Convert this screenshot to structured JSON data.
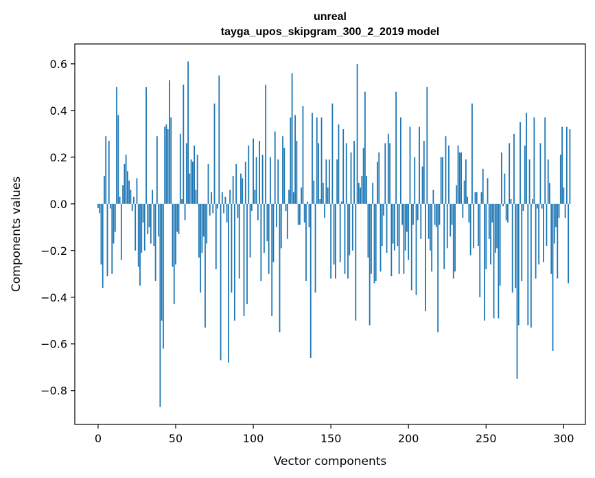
{
  "chart_data": {
    "type": "bar",
    "title": "unreal",
    "subtitle": "tayga_upos_skipgram_300_2_2019 model",
    "xlabel": "Vector components",
    "ylabel": "Components values",
    "xlim": [
      -15,
      314
    ],
    "ylim": [
      -0.945,
      0.685
    ],
    "xticks": [
      0,
      50,
      100,
      150,
      200,
      250,
      300
    ],
    "yticks": [
      -0.8,
      -0.6,
      -0.4,
      -0.2,
      0.0,
      0.2,
      0.4,
      0.6
    ],
    "ytick_labels": [
      "−0.8",
      "−0.6",
      "−0.4",
      "−0.2",
      "0.0",
      "0.2",
      "0.4",
      "0.6"
    ],
    "grid": false,
    "color": "#1f77b4",
    "values": [
      -0.018,
      -0.04,
      -0.26,
      -0.36,
      0.12,
      0.29,
      -0.31,
      0.27,
      -0.02,
      -0.3,
      -0.17,
      -0.12,
      0.5,
      0.38,
      0.03,
      -0.24,
      0.08,
      0.17,
      0.21,
      0.14,
      0.1,
      0.06,
      -0.03,
      0.03,
      -0.2,
      0.11,
      -0.27,
      -0.35,
      -0.21,
      -0.08,
      -0.2,
      0.5,
      -0.13,
      -0.1,
      -0.17,
      0.06,
      -0.18,
      -0.33,
      0.29,
      -0.14,
      -0.87,
      -0.5,
      -0.62,
      0.33,
      0.34,
      0.32,
      0.53,
      0.37,
      -0.27,
      -0.43,
      -0.26,
      -0.12,
      -0.13,
      0.3,
      0.02,
      0.51,
      -0.07,
      0.26,
      0.61,
      0.13,
      0.19,
      0.18,
      0.25,
      0.06,
      0.21,
      -0.23,
      -0.38,
      -0.21,
      -0.14,
      -0.53,
      -0.17,
      0.17,
      -0.05,
      0.05,
      -0.04,
      0.43,
      -0.28,
      -0.02,
      0.55,
      -0.67,
      0.05,
      -0.04,
      0.03,
      -0.08,
      -0.68,
      0.06,
      -0.38,
      0.12,
      -0.5,
      0.17,
      -0.06,
      -0.32,
      0.13,
      0.11,
      -0.48,
      0.18,
      -0.43,
      0.25,
      -0.23,
      -0.03,
      0.28,
      0.06,
      0.2,
      -0.07,
      0.27,
      -0.33,
      0.21,
      -0.21,
      0.51,
      -0.16,
      -0.3,
      0.2,
      -0.48,
      -0.25,
      0.31,
      -0.1,
      0.19,
      -0.55,
      -0.19,
      0.29,
      0.24,
      -0.03,
      -0.15,
      0.06,
      0.37,
      0.56,
      0.05,
      0.38,
      0.27,
      -0.09,
      -0.09,
      0.07,
      0.42,
      -0.08,
      -0.33,
      0.01,
      -0.1,
      -0.66,
      0.39,
      0.1,
      -0.38,
      0.37,
      0.26,
      0.02,
      0.37,
      0.09,
      -0.06,
      0.19,
      0.07,
      0.19,
      -0.32,
      0.43,
      -0.26,
      -0.32,
      0.19,
      0.34,
      -0.25,
      0.01,
      0.32,
      -0.3,
      0.26,
      -0.32,
      -0.22,
      0.22,
      -0.2,
      0.27,
      -0.5,
      0.6,
      0.09,
      0.07,
      0.12,
      0.24,
      0.48,
      0.12,
      -0.23,
      -0.52,
      -0.3,
      0.09,
      -0.34,
      -0.33,
      0.18,
      0.22,
      -0.29,
      -0.18,
      -0.05,
      0.26,
      -0.21,
      0.3,
      0.26,
      -0.31,
      -0.17,
      -0.2,
      0.48,
      -0.18,
      -0.3,
      0.37,
      -0.09,
      -0.3,
      -0.2,
      -0.12,
      -0.24,
      0.33,
      -0.37,
      -0.09,
      0.2,
      -0.39,
      -0.07,
      0.33,
      -0.15,
      0.16,
      0.27,
      -0.46,
      0.5,
      -0.15,
      -0.2,
      -0.29,
      0.06,
      -0.09,
      -0.1,
      -0.55,
      -0.09,
      0.2,
      0.2,
      -0.28,
      0.29,
      -0.19,
      0.25,
      -0.14,
      -0.09,
      -0.32,
      -0.29,
      0.08,
      0.25,
      0.22,
      0.22,
      -0.06,
      0.1,
      0.19,
      0.03,
      -0.08,
      -0.22,
      0.43,
      -0.19,
      0.05,
      0.05,
      -0.18,
      -0.4,
      0.05,
      0.15,
      -0.5,
      -0.28,
      0.11,
      -0.15,
      -0.26,
      -0.08,
      -0.49,
      -0.21,
      -0.19,
      -0.49,
      -0.35,
      0.22,
      -0.01,
      0.13,
      -0.07,
      -0.08,
      0.26,
      0.02,
      -0.38,
      0.3,
      -0.36,
      -0.75,
      -0.52,
      0.35,
      -0.33,
      -0.03,
      0.25,
      0.39,
      -0.52,
      0.19,
      -0.53,
      0.02,
      0.37,
      -0.32,
      -0.02,
      -0.26,
      0.26,
      -0.02,
      -0.25,
      0.37,
      -0.18,
      0.19,
      0.09,
      -0.3,
      -0.63,
      -0.17,
      -0.1,
      -0.32,
      -0.06,
      0.21,
      0.33,
      0.07,
      -0.06,
      0.33,
      -0.34,
      0.32,
      0.0
    ]
  }
}
